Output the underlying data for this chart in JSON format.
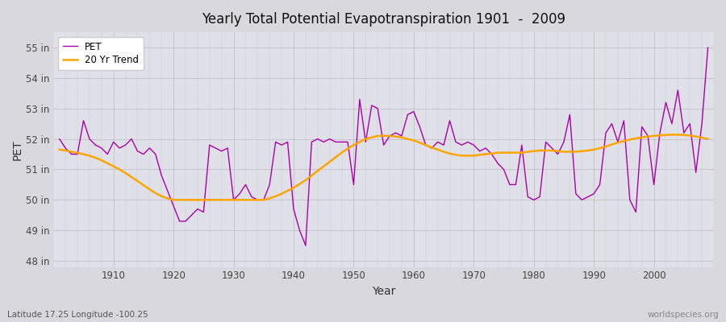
{
  "title": "Yearly Total Potential Evapotranspiration 1901  -  2009",
  "xlabel": "Year",
  "ylabel": "PET",
  "subtitle_left": "Latitude 17.25 Longitude -100.25",
  "subtitle_right": "worldspecies.org",
  "pet_color": "#aa00aa",
  "trend_color": "#FFA500",
  "fig_bg": "#d8d8de",
  "plot_bg": "#e0e0e8",
  "years": [
    1901,
    1902,
    1903,
    1904,
    1905,
    1906,
    1907,
    1908,
    1909,
    1910,
    1911,
    1912,
    1913,
    1914,
    1915,
    1916,
    1917,
    1918,
    1919,
    1920,
    1921,
    1922,
    1923,
    1924,
    1925,
    1926,
    1927,
    1928,
    1929,
    1930,
    1931,
    1932,
    1933,
    1934,
    1935,
    1936,
    1937,
    1938,
    1939,
    1940,
    1941,
    1942,
    1943,
    1944,
    1945,
    1946,
    1947,
    1948,
    1949,
    1950,
    1951,
    1952,
    1953,
    1954,
    1955,
    1956,
    1957,
    1958,
    1959,
    1960,
    1961,
    1962,
    1963,
    1964,
    1965,
    1966,
    1967,
    1968,
    1969,
    1970,
    1971,
    1972,
    1973,
    1974,
    1975,
    1976,
    1977,
    1978,
    1979,
    1980,
    1981,
    1982,
    1983,
    1984,
    1985,
    1986,
    1987,
    1988,
    1989,
    1990,
    1991,
    1992,
    1993,
    1994,
    1995,
    1996,
    1997,
    1998,
    1999,
    2000,
    2001,
    2002,
    2003,
    2004,
    2005,
    2006,
    2007,
    2008,
    2009
  ],
  "pet": [
    52.0,
    51.7,
    51.5,
    51.5,
    52.6,
    52.0,
    51.8,
    51.7,
    51.5,
    51.9,
    51.7,
    51.8,
    52.0,
    51.6,
    51.5,
    51.7,
    51.5,
    50.8,
    50.3,
    49.8,
    49.3,
    49.3,
    49.5,
    49.7,
    49.6,
    51.8,
    51.7,
    51.6,
    51.7,
    50.0,
    50.2,
    50.5,
    50.1,
    50.0,
    50.0,
    50.5,
    51.9,
    51.8,
    51.9,
    49.7,
    49.0,
    48.5,
    51.9,
    52.0,
    51.9,
    52.0,
    51.9,
    51.9,
    51.9,
    50.5,
    53.3,
    51.9,
    53.1,
    53.0,
    51.8,
    52.1,
    52.2,
    52.1,
    52.8,
    52.9,
    52.4,
    51.8,
    51.7,
    51.9,
    51.8,
    52.6,
    51.9,
    51.8,
    51.9,
    51.8,
    51.6,
    51.7,
    51.5,
    51.2,
    51.0,
    50.5,
    50.5,
    51.8,
    50.1,
    50.0,
    50.1,
    51.9,
    51.7,
    51.5,
    51.9,
    52.8,
    50.2,
    50.0,
    50.1,
    50.2,
    50.5,
    52.2,
    52.5,
    51.9,
    52.6,
    50.0,
    49.6,
    52.4,
    52.1,
    50.5,
    52.2,
    53.2,
    52.5,
    53.6,
    52.2,
    52.5,
    50.9,
    52.5,
    55.0
  ],
  "trend": [
    51.65,
    51.62,
    51.58,
    51.54,
    51.5,
    51.45,
    51.38,
    51.3,
    51.2,
    51.1,
    51.0,
    50.88,
    50.75,
    50.62,
    50.48,
    50.35,
    50.22,
    50.12,
    50.05,
    50.0,
    50.0,
    50.0,
    50.0,
    50.0,
    50.0,
    50.0,
    50.0,
    50.0,
    50.0,
    50.0,
    50.0,
    50.0,
    50.0,
    50.0,
    50.0,
    50.05,
    50.12,
    50.2,
    50.3,
    50.4,
    50.52,
    50.65,
    50.8,
    50.95,
    51.1,
    51.25,
    51.4,
    51.55,
    51.68,
    51.8,
    51.9,
    52.0,
    52.05,
    52.1,
    52.1,
    52.1,
    52.08,
    52.05,
    52.0,
    51.95,
    51.88,
    51.8,
    51.72,
    51.65,
    51.58,
    51.52,
    51.48,
    51.45,
    51.45,
    51.45,
    51.48,
    51.5,
    51.52,
    51.55,
    51.55,
    51.55,
    51.55,
    51.55,
    51.58,
    51.6,
    51.62,
    51.62,
    51.62,
    51.6,
    51.58,
    51.58,
    51.58,
    51.6,
    51.62,
    51.65,
    51.7,
    51.75,
    51.82,
    51.88,
    51.93,
    51.98,
    52.02,
    52.05,
    52.08,
    52.1,
    52.12,
    52.13,
    52.14,
    52.14,
    52.13,
    52.11,
    52.08,
    52.04,
    52.0
  ],
  "ylim": [
    47.8,
    55.5
  ],
  "yticks": [
    48,
    49,
    50,
    51,
    52,
    53,
    54,
    55
  ],
  "ytick_labels": [
    "48 in",
    "49 in",
    "50 in",
    "51 in",
    "52 in",
    "53 in",
    "54 in",
    "55 in"
  ],
  "xlim": [
    1900,
    2010
  ],
  "xticks": [
    1910,
    1920,
    1930,
    1940,
    1950,
    1960,
    1970,
    1980,
    1990,
    2000
  ],
  "pet_linewidth": 1.0,
  "trend_linewidth": 1.8,
  "legend_pet": "PET",
  "legend_trend": "20 Yr Trend"
}
